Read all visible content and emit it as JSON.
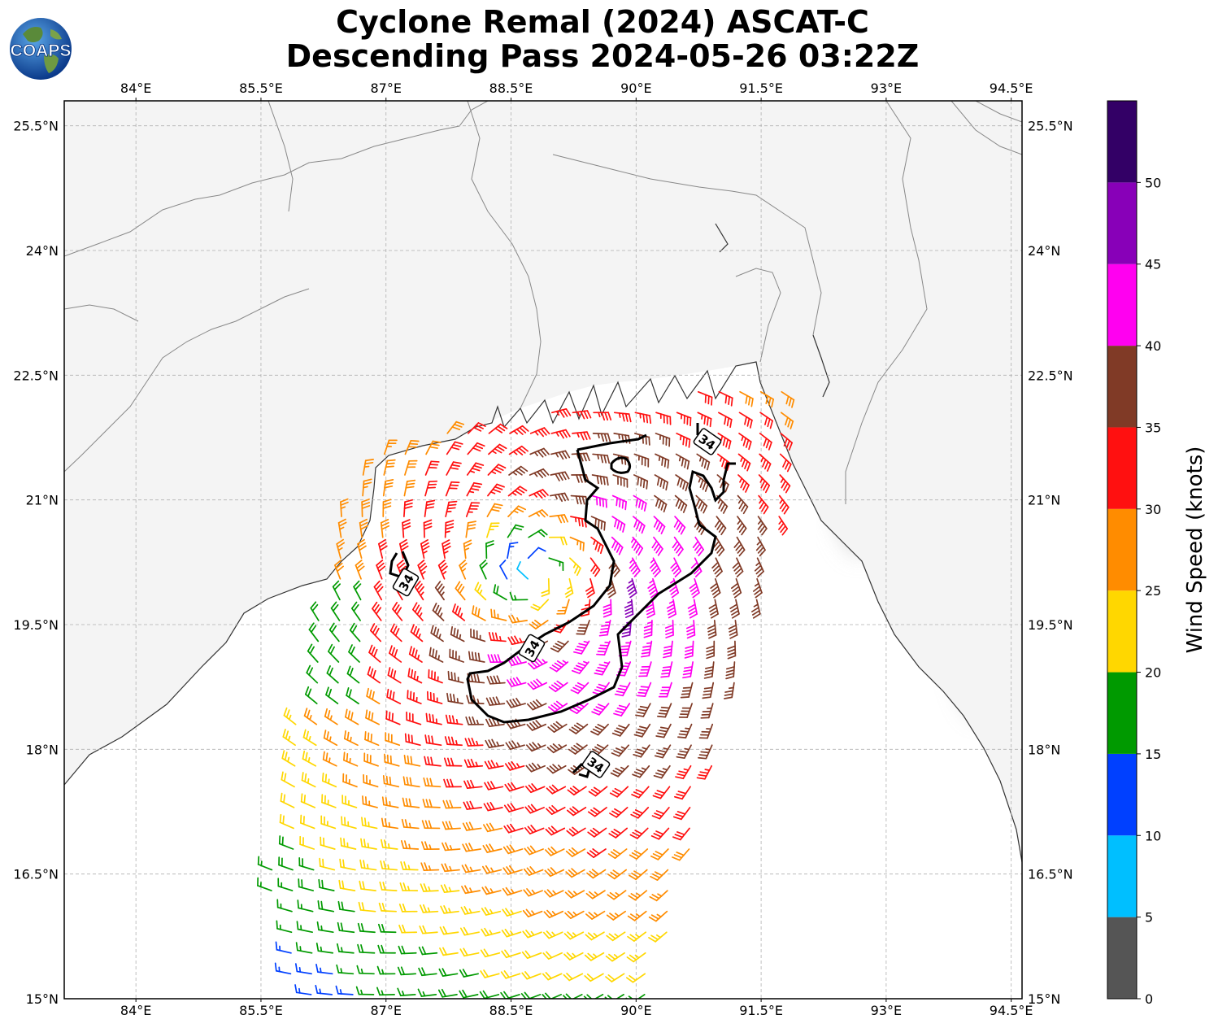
{
  "title": {
    "line1": "Cyclone Remal (2024) ASCAT-C",
    "line2": "Descending Pass 2024-05-26 03:22Z"
  },
  "logo": {
    "text": "COAPS",
    "icon": "globe-icon"
  },
  "map": {
    "lon_range": [
      83.14,
      94.63
    ],
    "lat_range": [
      15.0,
      25.8
    ],
    "lon_ticks": [
      "84°E",
      "85.5°E",
      "87°E",
      "88.5°E",
      "90°E",
      "91.5°E",
      "93°E",
      "94.5°E"
    ],
    "lon_tick_values": [
      84,
      85.5,
      87,
      88.5,
      90,
      91.5,
      93,
      94.5
    ],
    "lat_ticks": [
      "15°N",
      "16.5°N",
      "18°N",
      "19.5°N",
      "21°N",
      "22.5°N",
      "24°N",
      "25.5°N"
    ],
    "lat_tick_values": [
      15,
      16.5,
      18,
      19.5,
      21,
      22.5,
      24,
      25.5
    ],
    "gridlines": true,
    "contour_label": "34",
    "contour_value_knots": 34,
    "storm_center": {
      "lon": 88.8,
      "lat": 20.1
    },
    "terrain_color": "#9a9a9a",
    "coastline_color": "#333333"
  },
  "colorbar": {
    "label": "Wind Speed (knots)",
    "bounds": [
      0,
      5,
      10,
      15,
      20,
      25,
      30,
      35,
      40,
      45,
      50,
      55
    ],
    "tick_labels": [
      "0",
      "5",
      "10",
      "15",
      "20",
      "25",
      "30",
      "35",
      "40",
      "45",
      "50"
    ],
    "colors": [
      "#555555",
      "#00bfff",
      "#0040ff",
      "#009a00",
      "#ffd700",
      "#ff8c00",
      "#ff1010",
      "#803a26",
      "#ff00f0",
      "#8800b8",
      "#330066"
    ]
  }
}
